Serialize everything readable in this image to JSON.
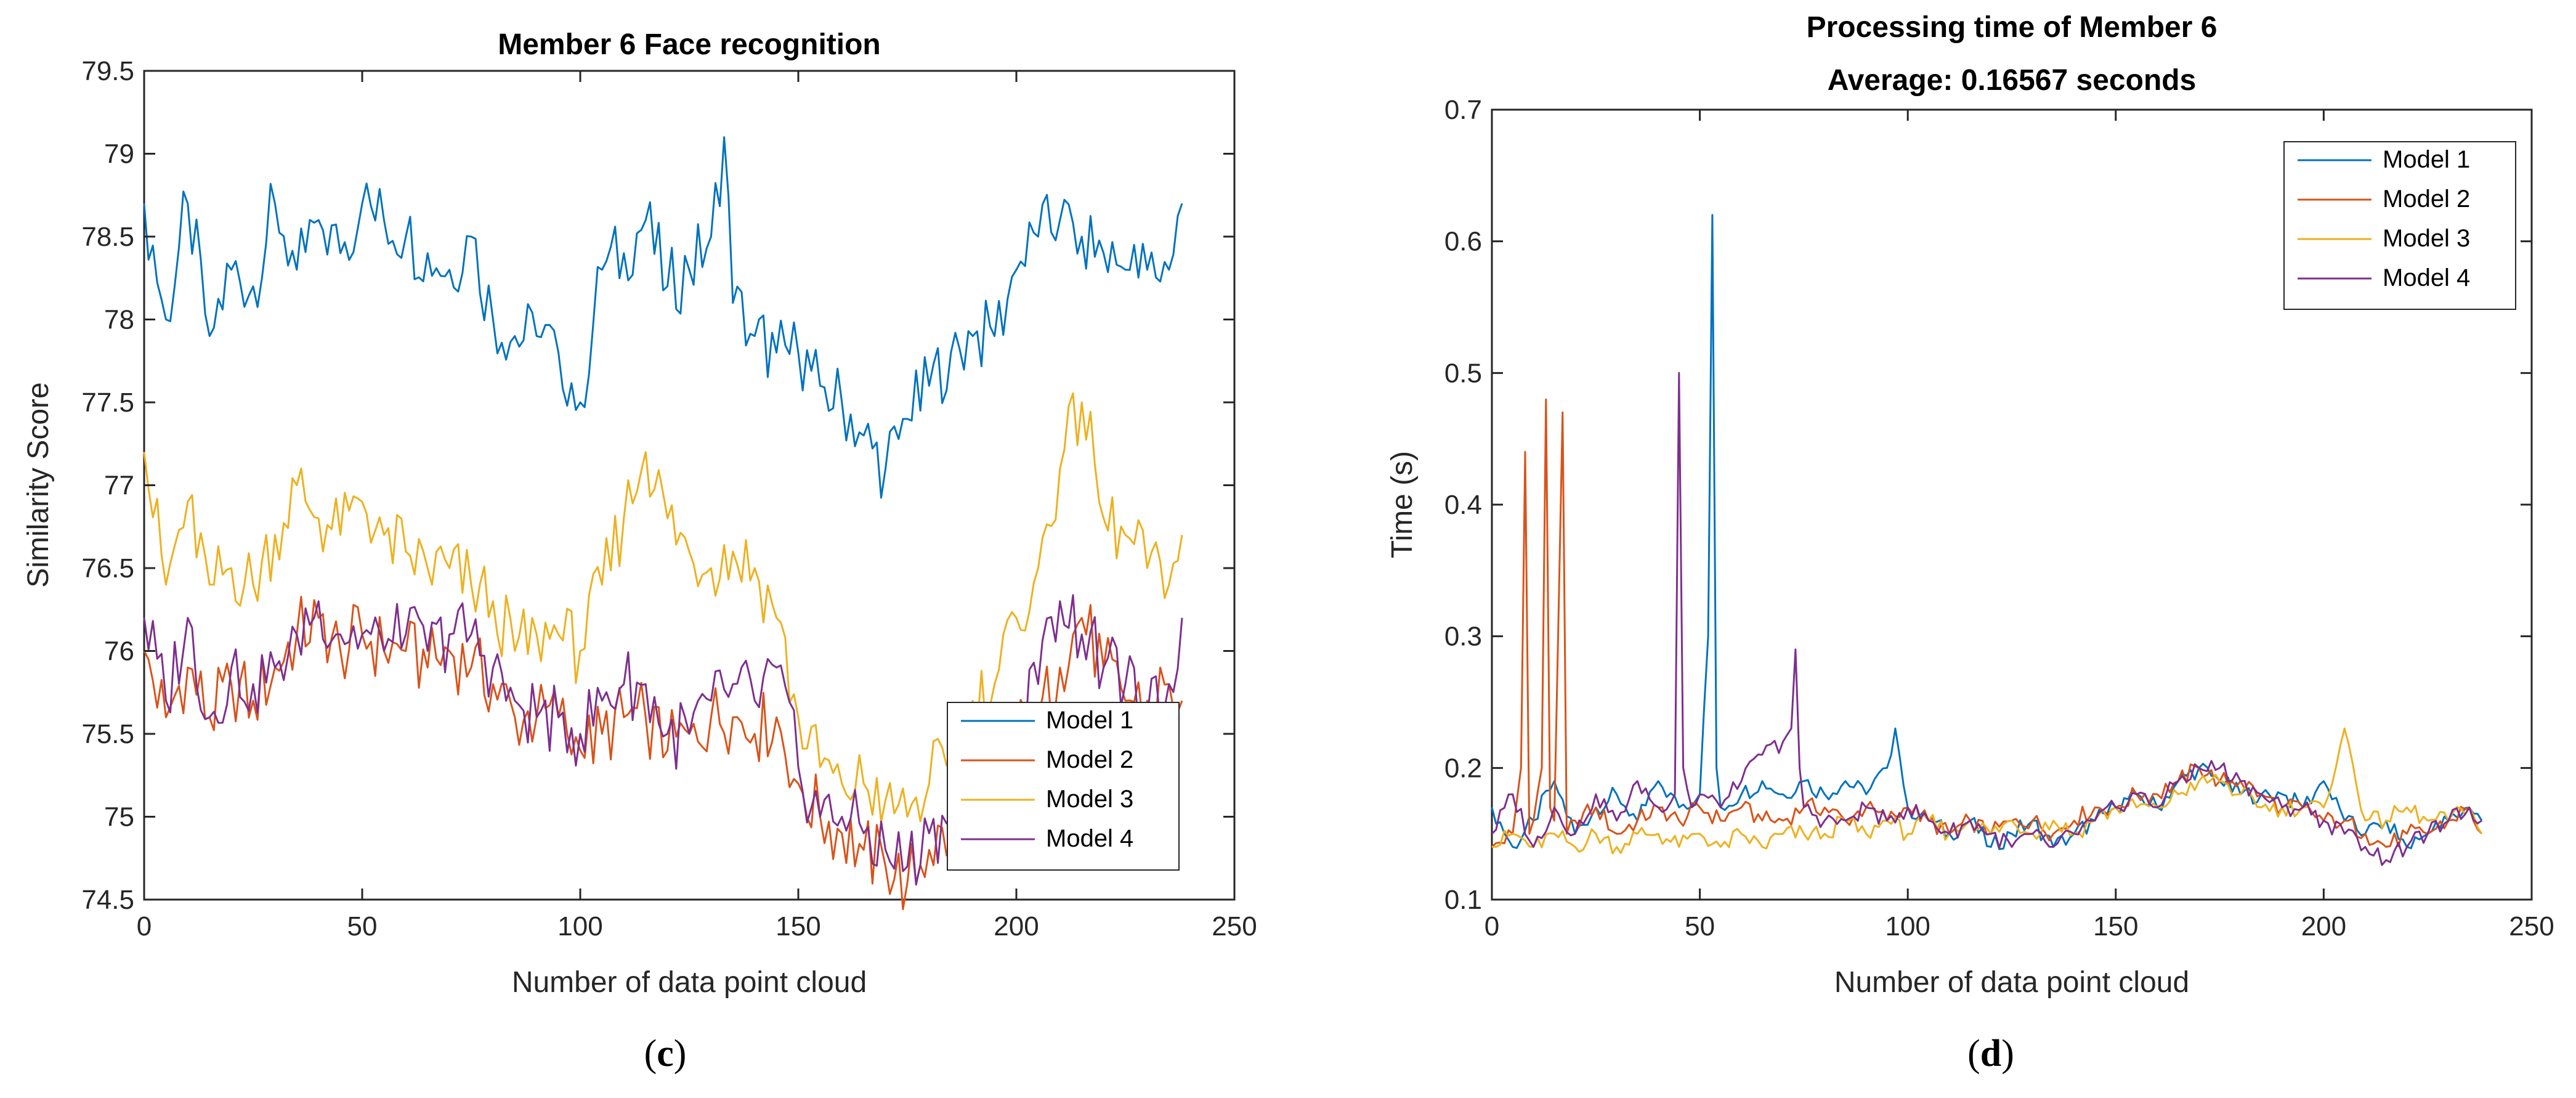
{
  "chart_data": [
    {
      "type": "line",
      "title": "Member 6 Face recognition",
      "xlabel": "Number of data point cloud",
      "ylabel": "Similarity Score",
      "xlim": [
        0,
        250
      ],
      "ylim": [
        74.5,
        79.5
      ],
      "xticks": [
        0,
        50,
        100,
        150,
        200,
        250
      ],
      "yticks": [
        74.5,
        75,
        75.5,
        76,
        76.5,
        77,
        77.5,
        78,
        78.5,
        79,
        79.5
      ],
      "legend_position": "bottom-right",
      "caption_letter": "c",
      "series": [
        {
          "name": "Model 1",
          "color": "#0072BD",
          "x": [
            0,
            5,
            10,
            15,
            20,
            25,
            30,
            35,
            40,
            45,
            50,
            55,
            60,
            65,
            70,
            75,
            80,
            85,
            90,
            95,
            100,
            105,
            110,
            115,
            120,
            125,
            130,
            133,
            135,
            140,
            145,
            150,
            155,
            160,
            165,
            170,
            175,
            180,
            185,
            190,
            195,
            200,
            205,
            210,
            215,
            220,
            225,
            230,
            235,
            238
          ],
          "y": [
            78.7,
            78.0,
            78.7,
            77.9,
            78.3,
            78.2,
            78.7,
            78.3,
            78.6,
            78.4,
            78.7,
            78.6,
            78.5,
            78.4,
            78.3,
            78.5,
            78.0,
            77.9,
            77.9,
            77.8,
            77.5,
            78.3,
            78.4,
            78.6,
            78.2,
            78.3,
            78.5,
            79.1,
            78.1,
            77.9,
            77.8,
            77.8,
            77.6,
            77.5,
            77.3,
            77.1,
            77.4,
            77.6,
            77.8,
            77.9,
            77.9,
            78.3,
            78.5,
            78.6,
            78.5,
            78.4,
            78.3,
            78.3,
            78.3,
            78.7
          ]
        },
        {
          "name": "Model 2",
          "color": "#D95319",
          "x": [
            0,
            5,
            10,
            15,
            20,
            25,
            30,
            35,
            40,
            45,
            50,
            55,
            60,
            65,
            70,
            75,
            80,
            85,
            90,
            95,
            100,
            105,
            110,
            115,
            120,
            125,
            130,
            135,
            140,
            145,
            150,
            155,
            160,
            165,
            170,
            175,
            180,
            185,
            190,
            195,
            200,
            205,
            210,
            215,
            220,
            225,
            230,
            235,
            238
          ],
          "y": [
            76.0,
            75.6,
            75.9,
            75.6,
            75.8,
            75.7,
            75.9,
            76.1,
            76.2,
            76.0,
            76.1,
            76.0,
            76.0,
            75.9,
            76.0,
            75.9,
            75.8,
            75.6,
            75.6,
            75.6,
            75.4,
            75.5,
            75.6,
            75.6,
            75.4,
            75.5,
            75.6,
            75.6,
            75.5,
            75.6,
            75.2,
            75.0,
            74.9,
            74.8,
            74.7,
            74.6,
            74.8,
            74.9,
            75.1,
            75.2,
            75.5,
            75.6,
            75.9,
            76.2,
            75.9,
            75.7,
            75.7,
            75.8,
            75.7
          ]
        },
        {
          "name": "Model 3",
          "color": "#EDB120",
          "x": [
            0,
            5,
            10,
            15,
            20,
            25,
            30,
            35,
            40,
            45,
            50,
            55,
            60,
            65,
            70,
            75,
            80,
            85,
            90,
            95,
            100,
            105,
            110,
            115,
            120,
            125,
            130,
            135,
            140,
            145,
            150,
            155,
            160,
            165,
            170,
            175,
            180,
            185,
            190,
            195,
            200,
            205,
            210,
            215,
            220,
            225,
            230,
            235,
            238
          ],
          "y": [
            77.2,
            76.4,
            76.9,
            76.4,
            76.5,
            76.4,
            76.7,
            77.0,
            76.8,
            76.7,
            76.9,
            76.7,
            76.6,
            76.5,
            76.5,
            76.4,
            76.3,
            76.0,
            76.1,
            76.1,
            76.0,
            76.4,
            76.8,
            77.2,
            76.8,
            76.6,
            76.5,
            76.6,
            76.5,
            76.2,
            75.6,
            75.3,
            75.2,
            75.2,
            75.1,
            75.0,
            75.2,
            75.4,
            75.7,
            75.8,
            76.2,
            76.5,
            77.1,
            77.5,
            76.8,
            76.7,
            76.5,
            76.4,
            76.7
          ]
        },
        {
          "name": "Model 4",
          "color": "#7E2F8E",
          "x": [
            0,
            5,
            10,
            15,
            20,
            25,
            30,
            35,
            40,
            45,
            50,
            55,
            60,
            65,
            70,
            75,
            80,
            85,
            90,
            95,
            100,
            105,
            110,
            115,
            120,
            125,
            130,
            135,
            140,
            145,
            150,
            155,
            160,
            165,
            170,
            175,
            180,
            185,
            190,
            195,
            200,
            205,
            210,
            215,
            220,
            225,
            230,
            235,
            238
          ],
          "y": [
            76.2,
            75.7,
            76.2,
            75.6,
            75.9,
            75.8,
            75.9,
            76.1,
            76.3,
            76.1,
            76.1,
            76.0,
            76.1,
            76.0,
            76.1,
            76.1,
            75.9,
            75.7,
            75.6,
            75.6,
            75.5,
            75.7,
            75.8,
            75.8,
            75.5,
            75.5,
            75.7,
            75.8,
            75.7,
            75.9,
            75.3,
            75.0,
            75.0,
            74.9,
            74.8,
            74.7,
            74.9,
            75.0,
            75.2,
            75.3,
            75.6,
            75.8,
            76.3,
            76.1,
            75.9,
            75.8,
            75.6,
            75.8,
            76.2
          ]
        }
      ]
    },
    {
      "type": "line",
      "title": "Processing time of Member 6",
      "subtitle": "Average: 0.16567 seconds",
      "xlabel": "Number of data point cloud",
      "ylabel": "Time (s)",
      "xlim": [
        0,
        250
      ],
      "ylim": [
        0.1,
        0.7
      ],
      "xticks": [
        0,
        50,
        100,
        150,
        200,
        250
      ],
      "yticks": [
        0.1,
        0.2,
        0.3,
        0.4,
        0.5,
        0.6,
        0.7
      ],
      "legend_position": "top-right",
      "caption_letter": "d",
      "series": [
        {
          "name": "Model 1",
          "color": "#0072BD",
          "x": [
            0,
            5,
            10,
            15,
            20,
            25,
            30,
            35,
            40,
            45,
            50,
            52,
            53,
            54,
            55,
            60,
            65,
            70,
            75,
            80,
            85,
            90,
            95,
            97,
            100,
            105,
            110,
            115,
            120,
            125,
            130,
            135,
            140,
            145,
            150,
            155,
            160,
            165,
            170,
            175,
            180,
            185,
            190,
            195,
            200,
            205,
            210,
            215,
            220,
            225,
            230,
            235,
            238
          ],
          "y": [
            0.17,
            0.14,
            0.16,
            0.19,
            0.15,
            0.17,
            0.18,
            0.16,
            0.19,
            0.17,
            0.18,
            0.3,
            0.62,
            0.2,
            0.17,
            0.18,
            0.19,
            0.18,
            0.19,
            0.18,
            0.19,
            0.18,
            0.2,
            0.23,
            0.17,
            0.16,
            0.15,
            0.16,
            0.14,
            0.15,
            0.16,
            0.14,
            0.15,
            0.16,
            0.17,
            0.18,
            0.17,
            0.19,
            0.2,
            0.19,
            0.18,
            0.18,
            0.18,
            0.17,
            0.19,
            0.16,
            0.15,
            0.16,
            0.14,
            0.15,
            0.16,
            0.17,
            0.16
          ]
        },
        {
          "name": "Model 2",
          "color": "#D95319",
          "x": [
            0,
            5,
            7,
            8,
            9,
            10,
            12,
            13,
            14,
            15,
            17,
            18,
            20,
            25,
            30,
            35,
            40,
            45,
            50,
            55,
            60,
            65,
            70,
            75,
            80,
            85,
            90,
            95,
            100,
            105,
            110,
            115,
            120,
            125,
            130,
            135,
            140,
            145,
            150,
            155,
            160,
            165,
            170,
            175,
            180,
            185,
            190,
            195,
            200,
            205,
            210,
            215,
            220,
            225,
            230,
            235,
            238
          ],
          "y": [
            0.14,
            0.15,
            0.2,
            0.44,
            0.15,
            0.16,
            0.2,
            0.48,
            0.17,
            0.16,
            0.47,
            0.15,
            0.16,
            0.17,
            0.15,
            0.16,
            0.17,
            0.16,
            0.17,
            0.16,
            0.17,
            0.16,
            0.16,
            0.17,
            0.17,
            0.16,
            0.17,
            0.16,
            0.17,
            0.16,
            0.15,
            0.16,
            0.15,
            0.16,
            0.16,
            0.15,
            0.16,
            0.17,
            0.17,
            0.18,
            0.18,
            0.19,
            0.2,
            0.19,
            0.19,
            0.18,
            0.17,
            0.17,
            0.16,
            0.16,
            0.15,
            0.14,
            0.15,
            0.15,
            0.16,
            0.17,
            0.15
          ]
        },
        {
          "name": "Model 3",
          "color": "#EDB120",
          "x": [
            0,
            5,
            10,
            15,
            20,
            25,
            30,
            35,
            40,
            45,
            50,
            55,
            60,
            65,
            70,
            75,
            80,
            85,
            90,
            95,
            100,
            105,
            110,
            115,
            120,
            125,
            130,
            135,
            140,
            145,
            150,
            155,
            160,
            165,
            170,
            175,
            180,
            185,
            190,
            195,
            200,
            205,
            210,
            215,
            220,
            225,
            230,
            235,
            238
          ],
          "y": [
            0.14,
            0.15,
            0.14,
            0.15,
            0.14,
            0.15,
            0.14,
            0.15,
            0.15,
            0.14,
            0.15,
            0.14,
            0.15,
            0.14,
            0.15,
            0.15,
            0.15,
            0.16,
            0.15,
            0.16,
            0.15,
            0.16,
            0.15,
            0.16,
            0.15,
            0.16,
            0.15,
            0.16,
            0.15,
            0.16,
            0.17,
            0.17,
            0.17,
            0.18,
            0.19,
            0.19,
            0.18,
            0.17,
            0.17,
            0.17,
            0.17,
            0.23,
            0.16,
            0.16,
            0.17,
            0.16,
            0.16,
            0.17,
            0.15
          ]
        },
        {
          "name": "Model 4",
          "color": "#7E2F8E",
          "x": [
            0,
            5,
            10,
            15,
            20,
            25,
            30,
            35,
            40,
            44,
            45,
            46,
            48,
            50,
            55,
            60,
            65,
            70,
            72,
            73,
            74,
            75,
            80,
            85,
            90,
            95,
            100,
            105,
            110,
            115,
            120,
            125,
            130,
            135,
            140,
            145,
            150,
            155,
            160,
            165,
            170,
            175,
            180,
            185,
            190,
            195,
            200,
            205,
            210,
            215,
            220,
            225,
            230,
            235,
            238
          ],
          "y": [
            0.15,
            0.18,
            0.14,
            0.17,
            0.15,
            0.18,
            0.16,
            0.19,
            0.17,
            0.18,
            0.5,
            0.2,
            0.17,
            0.18,
            0.17,
            0.19,
            0.21,
            0.22,
            0.23,
            0.29,
            0.2,
            0.17,
            0.16,
            0.16,
            0.17,
            0.16,
            0.17,
            0.16,
            0.15,
            0.16,
            0.15,
            0.14,
            0.15,
            0.14,
            0.15,
            0.16,
            0.17,
            0.18,
            0.17,
            0.19,
            0.2,
            0.2,
            0.19,
            0.18,
            0.17,
            0.17,
            0.16,
            0.15,
            0.14,
            0.13,
            0.14,
            0.15,
            0.16,
            0.17,
            0.16
          ]
        }
      ]
    }
  ]
}
